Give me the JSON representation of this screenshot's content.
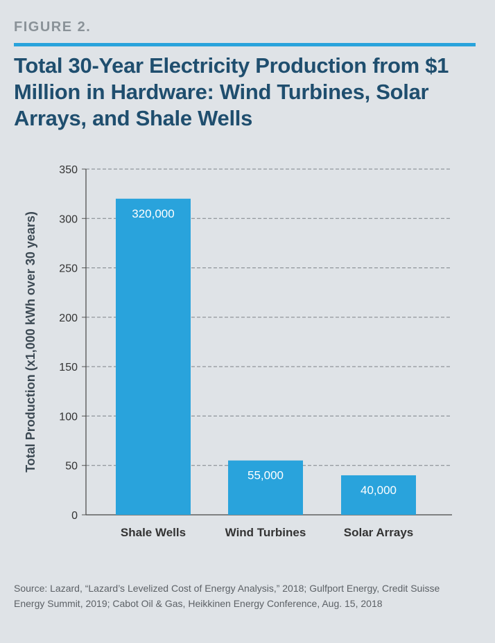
{
  "figure_label": "FIGURE 2.",
  "source": "Source: Lazard, “Lazard’s Levelized Cost of Energy Analysis,” 2018; Gulfport Energy, Credit Suisse Energy Summit, 2019; Cabot Oil & Gas, Heikkinen Energy Conference, Aug. 15, 2018",
  "colors": {
    "bar": "#29a3dc",
    "title": "#1f4e6e",
    "rule": "#29a3dc"
  },
  "chart_data": {
    "type": "bar",
    "title": "Total 30-Year Electricity Production from $1 Million in Hardware: Wind Turbines, Solar Arrays, and Shale Wells",
    "categories": [
      "Shale Wells",
      "Wind Turbines",
      "Solar Arrays"
    ],
    "values": [
      320,
      55,
      40
    ],
    "data_labels": [
      "320,000",
      "55,000",
      "40,000"
    ],
    "xlabel": "",
    "ylabel": "Total Production (x1,000 kWh over 30 years)",
    "ylim": [
      0,
      350
    ],
    "yticks": [
      0,
      50,
      100,
      150,
      200,
      250,
      300,
      350
    ],
    "grid": "dashed-horizontal",
    "legend": "none"
  }
}
